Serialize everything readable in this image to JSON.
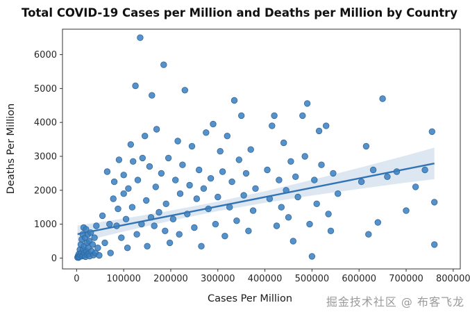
{
  "watermark": "掘金技术社区 @ 布客飞龙",
  "chart_data": {
    "type": "scatter",
    "title": "Total COVID-19 Cases per Million and Deaths per Million by Country",
    "xlabel": "Cases Per Million",
    "ylabel": "Deaths Per Million",
    "xlim": [
      -30000,
      815000
    ],
    "ylim": [
      -320,
      6750
    ],
    "x_ticks": {
      "values": [
        0,
        100000,
        200000,
        300000,
        400000,
        500000,
        600000,
        700000,
        800000
      ],
      "labels": [
        "0",
        "100000",
        "200000",
        "300000",
        "400000",
        "500000",
        "600000",
        "700000",
        "800000"
      ]
    },
    "y_ticks": {
      "values": [
        0,
        1000,
        2000,
        3000,
        4000,
        5000,
        6000
      ],
      "labels": [
        "0",
        "1000",
        "2000",
        "3000",
        "4000",
        "5000",
        "6000"
      ]
    },
    "point_color": "#3a7ebf",
    "point_edge": "#2e689d",
    "point_opacity": 0.85,
    "point_radius": 4.3,
    "line_color": "#3173b4",
    "band_color": "#3173b4",
    "band_opacity": 0.17,
    "spine_color": "#333333",
    "regression_line": {
      "x": [
        2000,
        760000
      ],
      "y": [
        705,
        2790
      ]
    },
    "confidence_band": {
      "x": [
        2000,
        100000,
        200000,
        300000,
        400000,
        500000,
        600000,
        700000,
        760000
      ],
      "upper": [
        960,
        1165,
        1400,
        1665,
        1970,
        2305,
        2660,
        3025,
        3255
      ],
      "lower": [
        450,
        785,
        1100,
        1385,
        1630,
        1845,
        2040,
        2225,
        2325
      ]
    },
    "points": [
      [
        2000,
        20
      ],
      [
        3000,
        60
      ],
      [
        4000,
        15
      ],
      [
        5000,
        120
      ],
      [
        6000,
        35
      ],
      [
        7000,
        250
      ],
      [
        8000,
        90
      ],
      [
        9000,
        400
      ],
      [
        10000,
        150
      ],
      [
        11000,
        550
      ],
      [
        12000,
        60
      ],
      [
        13000,
        700
      ],
      [
        14000,
        250
      ],
      [
        15000,
        900
      ],
      [
        15000,
        80
      ],
      [
        16000,
        350
      ],
      [
        17000,
        150
      ],
      [
        18000,
        600
      ],
      [
        19000,
        40
      ],
      [
        20000,
        850
      ],
      [
        21000,
        200
      ],
      [
        22000,
        450
      ],
      [
        23000,
        100
      ],
      [
        24000,
        700
      ],
      [
        25000,
        300
      ],
      [
        26000,
        120
      ],
      [
        27000,
        500
      ],
      [
        28000,
        60
      ],
      [
        30000,
        750
      ],
      [
        32000,
        200
      ],
      [
        34000,
        400
      ],
      [
        36000,
        90
      ],
      [
        38000,
        600
      ],
      [
        40000,
        150
      ],
      [
        42000,
        950
      ],
      [
        45000,
        300
      ],
      [
        48000,
        80
      ],
      [
        55000,
        1250
      ],
      [
        60000,
        450
      ],
      [
        65000,
        2550
      ],
      [
        70000,
        1000
      ],
      [
        72000,
        150
      ],
      [
        78000,
        1750
      ],
      [
        80000,
        2250
      ],
      [
        85000,
        950
      ],
      [
        88000,
        1450
      ],
      [
        90000,
        2900
      ],
      [
        95000,
        600
      ],
      [
        100000,
        1900
      ],
      [
        100000,
        2450
      ],
      [
        105000,
        1150
      ],
      [
        108000,
        300
      ],
      [
        110000,
        2050
      ],
      [
        115000,
        3350
      ],
      [
        118000,
        1500
      ],
      [
        120000,
        2850
      ],
      [
        125000,
        5080
      ],
      [
        128000,
        700
      ],
      [
        130000,
        2300
      ],
      [
        135000,
        6500
      ],
      [
        138000,
        1000
      ],
      [
        140000,
        2950
      ],
      [
        145000,
        3600
      ],
      [
        148000,
        1700
      ],
      [
        150000,
        350
      ],
      [
        155000,
        2700
      ],
      [
        158000,
        1200
      ],
      [
        160000,
        4800
      ],
      [
        165000,
        950
      ],
      [
        168000,
        2100
      ],
      [
        170000,
        3800
      ],
      [
        175000,
        1350
      ],
      [
        180000,
        2500
      ],
      [
        185000,
        5700
      ],
      [
        188000,
        800
      ],
      [
        190000,
        1600
      ],
      [
        195000,
        2950
      ],
      [
        198000,
        450
      ],
      [
        205000,
        1150
      ],
      [
        210000,
        2300
      ],
      [
        215000,
        3450
      ],
      [
        218000,
        700
      ],
      [
        220000,
        1900
      ],
      [
        225000,
        2750
      ],
      [
        230000,
        4950
      ],
      [
        235000,
        1300
      ],
      [
        240000,
        2150
      ],
      [
        245000,
        3300
      ],
      [
        250000,
        900
      ],
      [
        255000,
        1750
      ],
      [
        260000,
        2600
      ],
      [
        265000,
        350
      ],
      [
        270000,
        2050
      ],
      [
        275000,
        3700
      ],
      [
        280000,
        1450
      ],
      [
        285000,
        2350
      ],
      [
        290000,
        3950
      ],
      [
        295000,
        1000
      ],
      [
        300000,
        1800
      ],
      [
        305000,
        3150
      ],
      [
        310000,
        2550
      ],
      [
        315000,
        650
      ],
      [
        320000,
        3600
      ],
      [
        325000,
        1500
      ],
      [
        330000,
        2250
      ],
      [
        335000,
        4650
      ],
      [
        340000,
        1100
      ],
      [
        345000,
        2900
      ],
      [
        350000,
        4200
      ],
      [
        355000,
        1850
      ],
      [
        360000,
        2500
      ],
      [
        365000,
        800
      ],
      [
        370000,
        3200
      ],
      [
        375000,
        1400
      ],
      [
        380000,
        2050
      ],
      [
        405000,
        2600
      ],
      [
        410000,
        1750
      ],
      [
        415000,
        3900
      ],
      [
        420000,
        4200
      ],
      [
        425000,
        950
      ],
      [
        430000,
        2300
      ],
      [
        435000,
        1500
      ],
      [
        440000,
        3400
      ],
      [
        445000,
        2000
      ],
      [
        450000,
        1200
      ],
      [
        455000,
        2850
      ],
      [
        460000,
        500
      ],
      [
        465000,
        2400
      ],
      [
        470000,
        1800
      ],
      [
        480000,
        4200
      ],
      [
        485000,
        3000
      ],
      [
        490000,
        4560
      ],
      [
        495000,
        1000
      ],
      [
        500000,
        50
      ],
      [
        505000,
        2300
      ],
      [
        510000,
        1600
      ],
      [
        515000,
        3750
      ],
      [
        520000,
        2750
      ],
      [
        530000,
        3900
      ],
      [
        535000,
        1300
      ],
      [
        540000,
        800
      ],
      [
        545000,
        2500
      ],
      [
        555000,
        1900
      ],
      [
        605000,
        2250
      ],
      [
        615000,
        3300
      ],
      [
        620000,
        700
      ],
      [
        630000,
        2600
      ],
      [
        640000,
        1050
      ],
      [
        650000,
        4700
      ],
      [
        660000,
        2400
      ],
      [
        680000,
        2550
      ],
      [
        700000,
        1400
      ],
      [
        720000,
        2100
      ],
      [
        740000,
        2600
      ],
      [
        755000,
        3730
      ],
      [
        760000,
        400
      ],
      [
        760000,
        1650
      ]
    ]
  }
}
